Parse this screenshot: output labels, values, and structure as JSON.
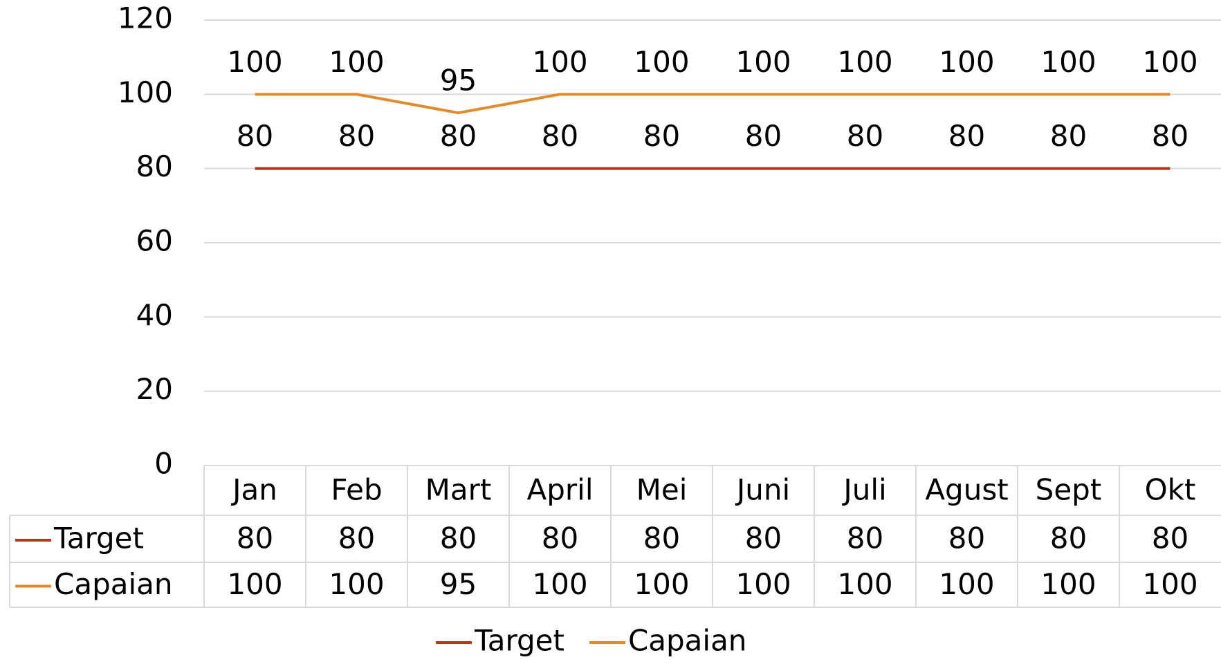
{
  "chart_data": {
    "type": "line",
    "categories": [
      "Jan",
      "Feb",
      "Mart",
      "April",
      "Mei",
      "Juni",
      "Juli",
      "Agust",
      "Sept",
      "Okt"
    ],
    "series": [
      {
        "name": "Target",
        "color": "#b03a1b",
        "values": [
          80,
          80,
          80,
          80,
          80,
          80,
          80,
          80,
          80,
          80
        ]
      },
      {
        "name": "Capaian",
        "color": "#e2892a",
        "values": [
          100,
          100,
          95,
          100,
          100,
          100,
          100,
          100,
          100,
          100
        ]
      }
    ],
    "ylim": [
      0,
      120
    ],
    "yticks": [
      0,
      20,
      40,
      60,
      80,
      100,
      120
    ],
    "grid": true,
    "legend": "bottom",
    "data_table": true
  }
}
